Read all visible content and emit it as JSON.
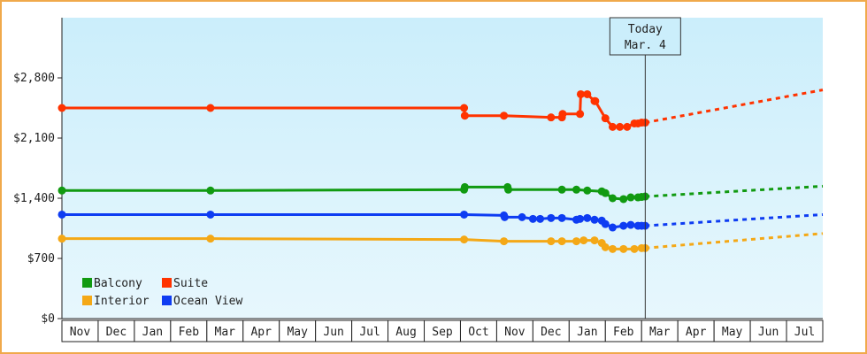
{
  "chart_data": {
    "type": "line",
    "title": "",
    "xlabel": "",
    "ylabel": "",
    "ylim": [
      0,
      3500
    ],
    "y_ticks": [
      0,
      700,
      1400,
      2100,
      2800
    ],
    "y_tick_labels": [
      "$0",
      "$700",
      "$1,400",
      "$2,100",
      "$2,800"
    ],
    "months": [
      "Nov",
      "Dec",
      "Jan",
      "Feb",
      "Mar",
      "Apr",
      "May",
      "Jun",
      "Jul",
      "Aug",
      "Sep",
      "Oct",
      "Nov",
      "Dec",
      "Jan",
      "Feb",
      "Mar",
      "Apr",
      "May",
      "Jun",
      "Jul"
    ],
    "today": {
      "label": "Today",
      "date": "Mar. 4",
      "x": 16.1
    },
    "grid": false,
    "legend": "bottom-left",
    "series": [
      {
        "name": "Balcony",
        "color": "#119a11",
        "x": [
          0,
          4.1,
          11.1,
          11.12,
          12.3,
          12.32,
          13.8,
          14.2,
          14.5,
          14.9,
          15.0,
          15.2,
          15.5,
          15.7,
          15.9,
          16.0,
          16.1
        ],
        "y": [
          1490,
          1490,
          1500,
          1530,
          1530,
          1500,
          1500,
          1500,
          1490,
          1480,
          1460,
          1400,
          1390,
          1410,
          1410,
          1415,
          1420
        ],
        "markers": [
          0,
          4.1,
          11.1,
          11.12,
          12.3,
          12.32,
          13.8,
          14.2,
          14.5,
          14.9,
          15.0,
          15.2,
          15.5,
          15.7,
          15.9,
          16.0,
          16.1
        ],
        "projection": {
          "x": [
            16.1,
            21
          ],
          "y": [
            1420,
            1540
          ]
        }
      },
      {
        "name": "Suite",
        "color": "#ff3300",
        "x": [
          0,
          4.1,
          11.1,
          11.12,
          12.2,
          13.5,
          13.8,
          13.82,
          14.3,
          14.32,
          14.5,
          14.7,
          14.72,
          15.0,
          15.2,
          15.4,
          15.6,
          15.8,
          15.9,
          16.0,
          16.1
        ],
        "y": [
          2450,
          2450,
          2450,
          2360,
          2360,
          2340,
          2340,
          2380,
          2380,
          2610,
          2610,
          2530,
          2530,
          2330,
          2230,
          2230,
          2230,
          2270,
          2270,
          2280,
          2280
        ],
        "markers": [
          0,
          4.1,
          11.1,
          11.12,
          12.2,
          13.5,
          13.8,
          13.82,
          14.3,
          14.32,
          14.5,
          14.7,
          14.72,
          15.0,
          15.2,
          15.4,
          15.6,
          15.8,
          15.9,
          16.0,
          16.1
        ],
        "projection": {
          "x": [
            16.1,
            21
          ],
          "y": [
            2280,
            2660
          ]
        }
      },
      {
        "name": "Interior",
        "color": "#f4a816",
        "x": [
          0,
          4.1,
          11.1,
          12.2,
          13.5,
          13.8,
          14.2,
          14.4,
          14.7,
          14.9,
          15.0,
          15.2,
          15.5,
          15.8,
          16.0,
          16.1
        ],
        "y": [
          930,
          930,
          920,
          900,
          900,
          900,
          900,
          910,
          910,
          880,
          830,
          810,
          810,
          810,
          820,
          820
        ],
        "markers": [
          0,
          4.1,
          11.1,
          12.2,
          13.5,
          13.8,
          14.2,
          14.4,
          14.7,
          14.9,
          15.0,
          15.2,
          15.5,
          15.8,
          16.0,
          16.1
        ],
        "projection": {
          "x": [
            16.1,
            21
          ],
          "y": [
            820,
            990
          ]
        }
      },
      {
        "name": "Ocean View",
        "color": "#0e3cf2",
        "x": [
          0,
          4.1,
          11.1,
          12.2,
          12.22,
          12.7,
          13.0,
          13.2,
          13.5,
          13.8,
          14.2,
          14.3,
          14.5,
          14.7,
          14.9,
          15.0,
          15.2,
          15.5,
          15.7,
          15.9,
          16.0,
          16.1
        ],
        "y": [
          1210,
          1210,
          1210,
          1200,
          1180,
          1180,
          1160,
          1160,
          1170,
          1170,
          1150,
          1160,
          1170,
          1150,
          1140,
          1100,
          1060,
          1080,
          1090,
          1080,
          1080,
          1080
        ],
        "markers": [
          0,
          4.1,
          11.1,
          12.2,
          12.22,
          12.7,
          13.0,
          13.2,
          13.5,
          13.8,
          14.2,
          14.3,
          14.5,
          14.7,
          14.9,
          15.0,
          15.2,
          15.5,
          15.7,
          15.9,
          16.0,
          16.1
        ],
        "projection": {
          "x": [
            16.1,
            21
          ],
          "y": [
            1080,
            1210
          ]
        }
      }
    ],
    "legend_order": [
      "Balcony",
      "Suite",
      "Interior",
      "Ocean View"
    ]
  },
  "style": {
    "frame_color": "#f0a94b",
    "plot_bg_top": "#cbeefb",
    "plot_bg_bottom": "#e7f7fd"
  }
}
